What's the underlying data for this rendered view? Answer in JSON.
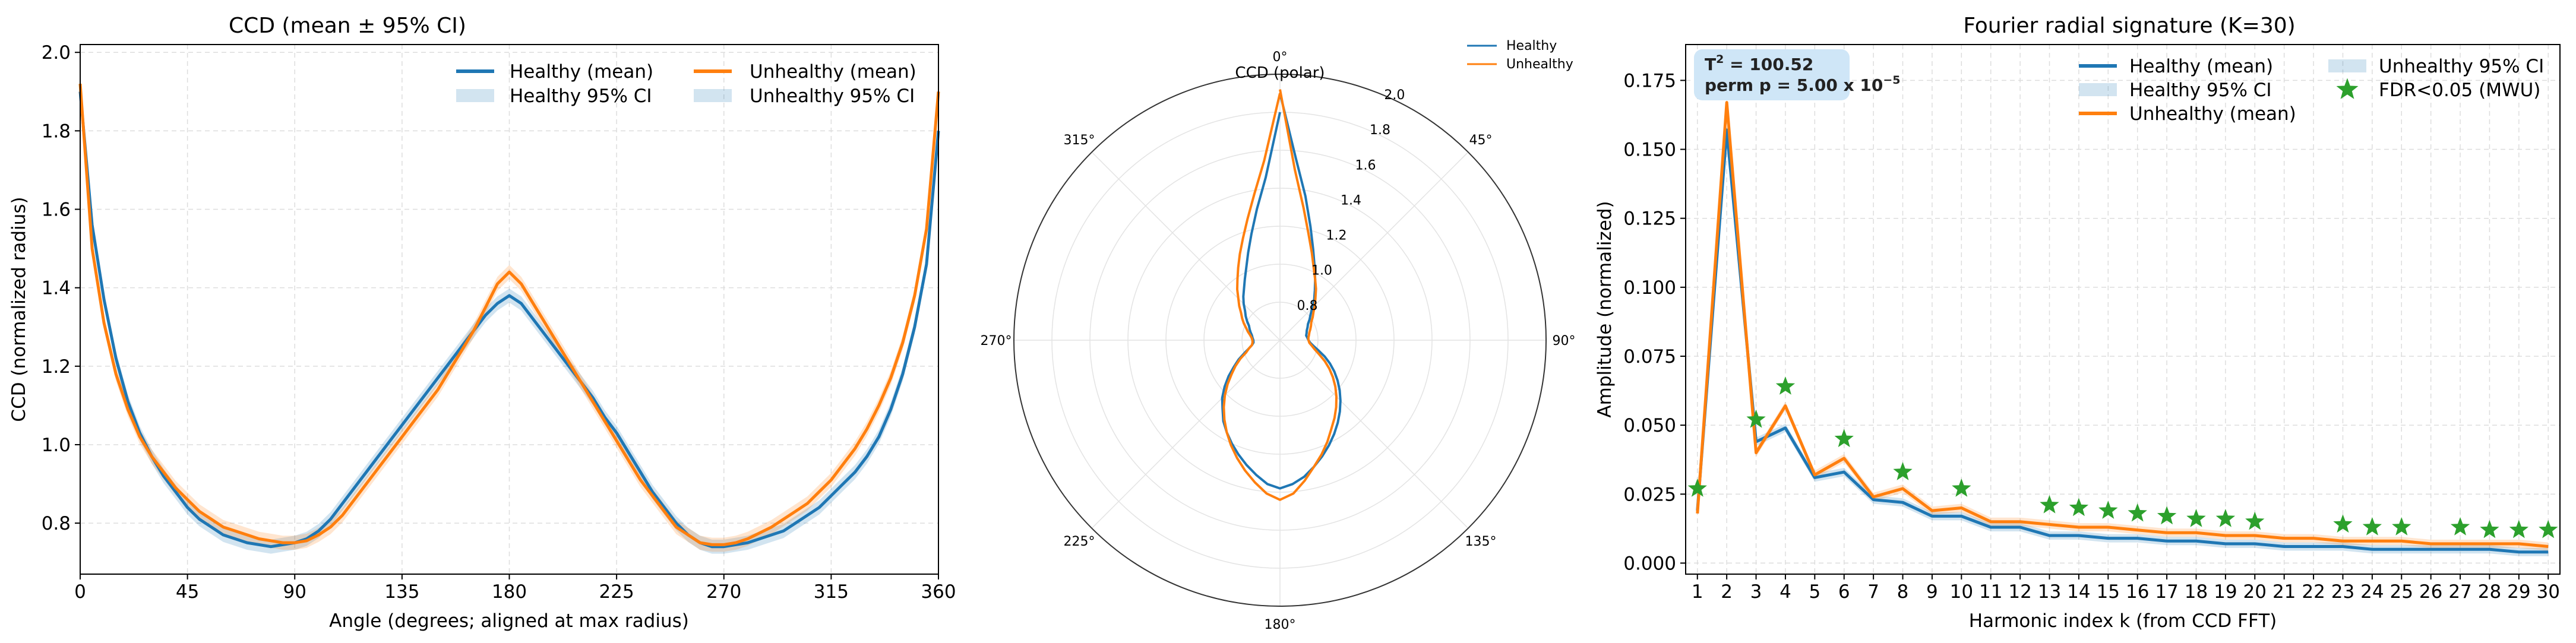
{
  "colors": {
    "healthy": "#1f77b4",
    "unhealthy": "#ff7f0e",
    "fdr": "#2ca02c",
    "grid": "#dddddd",
    "annot_bg": "#cfe6f7"
  },
  "chart_data": [
    {
      "type": "line",
      "title": "CCD (mean ± 95% CI)",
      "xlabel": "Angle (degrees; aligned at max radius)",
      "ylabel": "CCD (normalized radius)",
      "xlim": [
        0,
        360
      ],
      "ylim": [
        0.67,
        2.02
      ],
      "xticks": [
        0,
        45,
        90,
        135,
        180,
        225,
        270,
        315,
        360
      ],
      "yticks": [
        0.8,
        1.0,
        1.2,
        1.4,
        1.6,
        1.8,
        2.0
      ],
      "grid": true,
      "legend_position": "top-right",
      "legend": [
        "Healthy (mean)",
        "Healthy 95% CI",
        "Unhealthy (mean)",
        "Unhealthy 95% CI"
      ],
      "x": [
        0,
        5,
        10,
        15,
        20,
        25,
        30,
        35,
        40,
        45,
        50,
        55,
        60,
        65,
        70,
        75,
        80,
        85,
        90,
        95,
        100,
        105,
        110,
        115,
        120,
        125,
        130,
        135,
        140,
        145,
        150,
        155,
        160,
        165,
        170,
        175,
        180,
        185,
        190,
        195,
        200,
        205,
        210,
        215,
        220,
        225,
        230,
        235,
        240,
        245,
        250,
        255,
        260,
        265,
        270,
        275,
        280,
        285,
        290,
        295,
        300,
        305,
        310,
        315,
        320,
        325,
        330,
        335,
        340,
        345,
        350,
        355,
        360
      ],
      "series": [
        {
          "name": "Healthy (mean)",
          "ci": 0.018,
          "values": [
            1.9,
            1.56,
            1.37,
            1.22,
            1.11,
            1.03,
            0.97,
            0.92,
            0.88,
            0.84,
            0.81,
            0.79,
            0.77,
            0.76,
            0.75,
            0.745,
            0.74,
            0.745,
            0.75,
            0.76,
            0.78,
            0.81,
            0.85,
            0.89,
            0.93,
            0.97,
            1.01,
            1.05,
            1.09,
            1.13,
            1.17,
            1.21,
            1.25,
            1.29,
            1.33,
            1.36,
            1.38,
            1.36,
            1.32,
            1.28,
            1.24,
            1.2,
            1.16,
            1.12,
            1.07,
            1.03,
            0.98,
            0.93,
            0.88,
            0.84,
            0.8,
            0.77,
            0.75,
            0.74,
            0.74,
            0.745,
            0.75,
            0.76,
            0.77,
            0.78,
            0.8,
            0.82,
            0.84,
            0.87,
            0.9,
            0.93,
            0.97,
            1.02,
            1.09,
            1.18,
            1.3,
            1.46,
            1.8
          ]
        },
        {
          "name": "Unhealthy (mean)",
          "ci": 0.018,
          "values": [
            1.92,
            1.5,
            1.31,
            1.18,
            1.09,
            1.02,
            0.97,
            0.93,
            0.89,
            0.86,
            0.83,
            0.81,
            0.79,
            0.78,
            0.77,
            0.76,
            0.755,
            0.75,
            0.75,
            0.755,
            0.77,
            0.79,
            0.82,
            0.86,
            0.9,
            0.94,
            0.98,
            1.02,
            1.06,
            1.1,
            1.14,
            1.19,
            1.24,
            1.29,
            1.35,
            1.41,
            1.44,
            1.41,
            1.36,
            1.31,
            1.26,
            1.21,
            1.16,
            1.11,
            1.06,
            1.01,
            0.96,
            0.91,
            0.87,
            0.83,
            0.79,
            0.77,
            0.75,
            0.745,
            0.745,
            0.75,
            0.76,
            0.775,
            0.79,
            0.81,
            0.83,
            0.85,
            0.88,
            0.91,
            0.95,
            0.99,
            1.04,
            1.1,
            1.17,
            1.26,
            1.38,
            1.55,
            1.9
          ]
        }
      ]
    },
    {
      "type": "line",
      "subtype": "polar",
      "title": "CCD (polar)",
      "theta_labels": [
        "0°",
        "45°",
        "90°",
        "135°",
        "180°",
        "225°",
        "270°",
        "315°"
      ],
      "theta_values": [
        0,
        45,
        90,
        135,
        180,
        225,
        270,
        315
      ],
      "rlim": [
        0.6,
        2.0
      ],
      "r_tick_labels": [
        "0.8",
        "1.0",
        "1.2",
        "1.4",
        "1.6",
        "1.8",
        "2.0"
      ],
      "r_ticks": [
        0.8,
        1.0,
        1.2,
        1.4,
        1.6,
        1.8,
        2.0
      ],
      "legend_position": "top-right",
      "legend": [
        "Healthy",
        "Unhealthy"
      ],
      "series_source": "same as CCD (mean) panel"
    },
    {
      "type": "line",
      "title": "Fourier radial signature (K=30)",
      "xlabel": "Harmonic index k (from CCD FFT)",
      "ylabel": "Amplitude (normalized)",
      "xlim": [
        0.6,
        30.4
      ],
      "ylim": [
        -0.004,
        0.188
      ],
      "xticks": [
        1,
        2,
        3,
        4,
        5,
        6,
        7,
        8,
        9,
        10,
        11,
        12,
        13,
        14,
        15,
        16,
        17,
        18,
        19,
        20,
        21,
        22,
        23,
        24,
        25,
        26,
        27,
        28,
        29,
        30
      ],
      "yticks": [
        0.0,
        0.025,
        0.05,
        0.075,
        0.1,
        0.125,
        0.15,
        0.175
      ],
      "ytick_labels": [
        "0.000",
        "0.025",
        "0.050",
        "0.075",
        "0.100",
        "0.125",
        "0.150",
        "0.175"
      ],
      "grid": true,
      "legend_position": "top-right",
      "legend": [
        "Healthy (mean)",
        "Healthy 95% CI",
        "Unhealthy (mean)",
        "Unhealthy 95% CI",
        "FDR<0.05 (MWU)"
      ],
      "annotation": {
        "line1": "T",
        "line1_sup": "2",
        "line1_rest": " = 100.52",
        "line2": "perm p = 5.00 x 10",
        "line2_sup": "−5"
      },
      "x": [
        1,
        2,
        3,
        4,
        5,
        6,
        7,
        8,
        9,
        10,
        11,
        12,
        13,
        14,
        15,
        16,
        17,
        18,
        19,
        20,
        21,
        22,
        23,
        24,
        25,
        26,
        27,
        28,
        29,
        30
      ],
      "series": [
        {
          "name": "Healthy (mean)",
          "ci": 0.0015,
          "values": [
            0.019,
            0.157,
            0.044,
            0.049,
            0.031,
            0.033,
            0.023,
            0.022,
            0.017,
            0.017,
            0.013,
            0.013,
            0.01,
            0.01,
            0.009,
            0.009,
            0.008,
            0.008,
            0.007,
            0.007,
            0.006,
            0.006,
            0.006,
            0.005,
            0.005,
            0.005,
            0.005,
            0.005,
            0.004,
            0.004
          ]
        },
        {
          "name": "Unhealthy (mean)",
          "ci": 0.0015,
          "values": [
            0.018,
            0.167,
            0.04,
            0.057,
            0.032,
            0.038,
            0.024,
            0.027,
            0.019,
            0.02,
            0.015,
            0.015,
            0.014,
            0.013,
            0.013,
            0.012,
            0.011,
            0.011,
            0.01,
            0.01,
            0.009,
            0.009,
            0.008,
            0.008,
            0.008,
            0.007,
            0.007,
            0.007,
            0.007,
            0.006
          ]
        }
      ],
      "fdr_points": {
        "name": "FDR<0.05 (MWU)",
        "x": [
          1,
          3,
          4,
          6,
          8,
          10,
          13,
          14,
          15,
          16,
          17,
          18,
          19,
          20,
          23,
          24,
          25,
          27,
          28,
          29,
          30
        ],
        "y": [
          0.027,
          0.052,
          0.064,
          0.045,
          0.033,
          0.027,
          0.021,
          0.02,
          0.019,
          0.018,
          0.017,
          0.016,
          0.016,
          0.015,
          0.014,
          0.013,
          0.013,
          0.013,
          0.012,
          0.012,
          0.012
        ]
      }
    }
  ]
}
